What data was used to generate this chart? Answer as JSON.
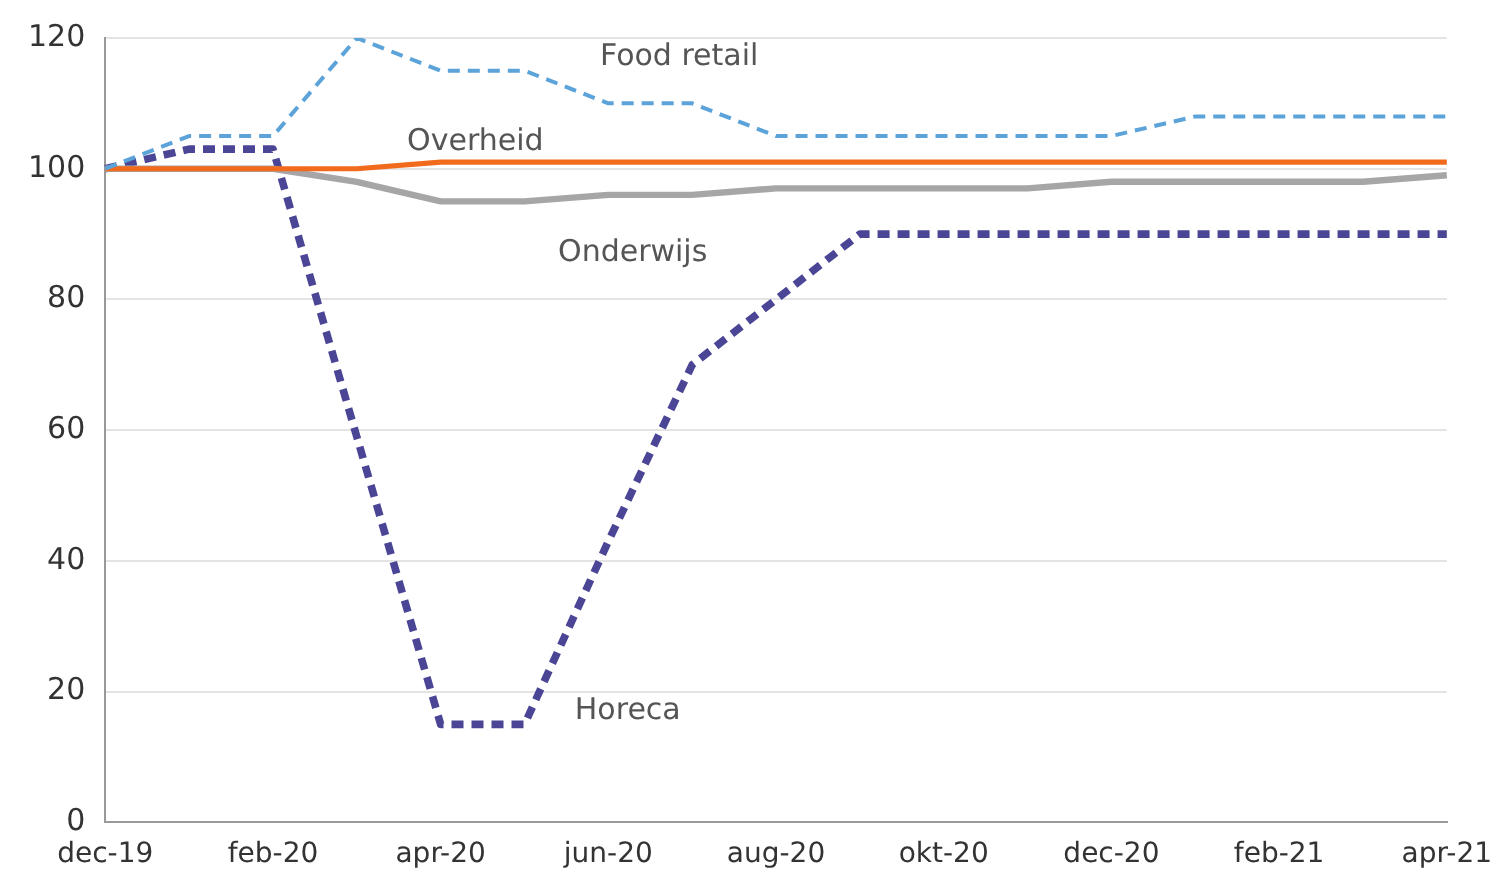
{
  "chart_data": {
    "type": "line",
    "categories": [
      "dec-19",
      null,
      "feb-20",
      null,
      "apr-20",
      null,
      "jun-20",
      null,
      "aug-20",
      null,
      "okt-20",
      null,
      "dec-20",
      null,
      "feb-21",
      null,
      "apr-21"
    ],
    "ylim": [
      0,
      120
    ],
    "yticks": [
      0,
      20,
      40,
      60,
      80,
      100,
      120
    ],
    "grid": "y",
    "legend": false,
    "marker": "none",
    "series": [
      {
        "name": "Food retail",
        "color": "#5ba3d9",
        "line_style": "dashed",
        "values": [
          100,
          105,
          105,
          120,
          115,
          115,
          110,
          110,
          105,
          105,
          105,
          105,
          105,
          108,
          108,
          108,
          108
        ]
      },
      {
        "name": "Overheid",
        "color": "#f26b1d",
        "line_style": "solid",
        "values": [
          100,
          100,
          100,
          100,
          101,
          101,
          101,
          101,
          101,
          101,
          101,
          101,
          101,
          101,
          101,
          101,
          101
        ]
      },
      {
        "name": "Onderwijs",
        "color": "#a6a6a6",
        "line_style": "solid",
        "values": [
          100,
          100,
          100,
          98,
          95,
          95,
          96,
          96,
          97,
          97,
          97,
          97,
          98,
          98,
          98,
          98,
          99
        ]
      },
      {
        "name": "Horeca",
        "color": "#4b4596",
        "line_style": "dashed",
        "values": [
          100,
          103,
          103,
          59,
          15,
          15,
          43,
          70,
          80,
          90,
          90,
          90,
          90,
          90,
          90,
          90,
          90
        ]
      }
    ]
  }
}
